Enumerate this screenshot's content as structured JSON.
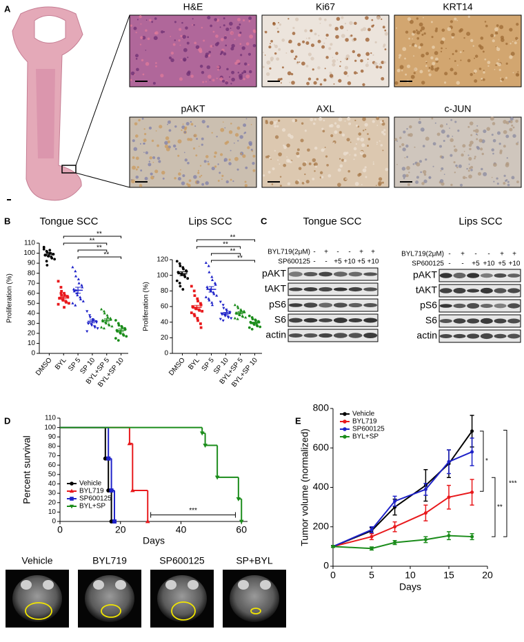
{
  "panel_labels": [
    "A",
    "B",
    "C",
    "D",
    "E"
  ],
  "histology": {
    "stains": [
      "H&E",
      "Ki67",
      "KRT14",
      "pAKT",
      "AXL",
      "c-JUN"
    ]
  },
  "blots": [
    {
      "title": "Tongue SCC",
      "treatments": [
        {
          "name": "BYL719(2μM)",
          "doses": [
            "-",
            "+",
            "-",
            "-",
            "+",
            "+"
          ]
        },
        {
          "name": "SP600125",
          "doses": [
            "-",
            "-",
            "+5",
            "+10",
            "+5",
            "+10"
          ]
        }
      ],
      "proteins": [
        "pAKT",
        "tAKT",
        "pS6",
        "S6",
        "actin"
      ]
    },
    {
      "title": "Lips SCC",
      "treatments": [
        {
          "name": "BYL719(2μM)",
          "doses": [
            "-",
            "+",
            "-",
            "-",
            "+",
            "+"
          ]
        },
        {
          "name": "SP600125",
          "doses": [
            "-",
            "-",
            "+5",
            "+10",
            "+5",
            "+10"
          ]
        }
      ],
      "proteins": [
        "pAKT",
        "tAKT",
        "pS6",
        "S6",
        "actin"
      ]
    }
  ],
  "mri": {
    "labels": [
      {
        "text": "Vehicle",
        "color": "#000000"
      },
      {
        "text": "BYL719",
        "color": "#e8191c"
      },
      {
        "text": "SP600125",
        "color": "#1e22c8"
      },
      {
        "text": "SP+BYL",
        "color": "#1a8c1a"
      }
    ]
  },
  "chart_data": [
    {
      "type": "strip",
      "title": "Tongue SCC",
      "y_label": "Proliferation (%)",
      "categories": [
        "DMSO",
        "BYL",
        "SP 5",
        "SP 10",
        "BYL+SP 5",
        "BYL+SP 10"
      ],
      "groups": [
        {
          "color": "#000000",
          "marker": "circle",
          "mean": 99,
          "sem": 1.5,
          "points": [
            104,
            102,
            101,
            100,
            100,
            99,
            99,
            98,
            98,
            97,
            97,
            96,
            95,
            94,
            106,
            92,
            88,
            103
          ]
        },
        {
          "color": "#e8191c",
          "marker": "square",
          "mean": 56,
          "sem": 1.5,
          "points": [
            72,
            66,
            62,
            60,
            58,
            57,
            56,
            55,
            55,
            54,
            53,
            52,
            51,
            50,
            49,
            60,
            58,
            46
          ]
        },
        {
          "color": "#1e22c8",
          "marker": "triangle-up",
          "mean": 63,
          "sem": 3,
          "points": [
            86,
            82,
            77,
            74,
            70,
            68,
            66,
            64,
            62,
            60,
            58,
            56,
            54,
            52,
            50,
            48,
            63
          ]
        },
        {
          "color": "#1e22c8",
          "marker": "triangle-down",
          "mean": 32,
          "sem": 1.5,
          "points": [
            42,
            38,
            36,
            34,
            33,
            32,
            31,
            30,
            30,
            29,
            28,
            27,
            26,
            25,
            22
          ]
        },
        {
          "color": "#1a8c1a",
          "marker": "triangle-up",
          "mean": 33,
          "sem": 1.5,
          "points": [
            44,
            42,
            40,
            38,
            36,
            35,
            34,
            33,
            32,
            31,
            30,
            29,
            28,
            27,
            26,
            25
          ]
        },
        {
          "color": "#1a8c1a",
          "marker": "circle",
          "mean": 23,
          "sem": 1.5,
          "points": [
            33,
            30,
            28,
            27,
            26,
            25,
            24,
            23,
            22,
            21,
            20,
            19,
            18,
            17,
            15,
            13
          ]
        }
      ],
      "ylim": [
        0,
        110
      ],
      "yticks": [
        0,
        10,
        20,
        30,
        40,
        50,
        60,
        70,
        80,
        90,
        100,
        110
      ],
      "brackets": [
        {
          "from": 1,
          "to": 5,
          "label": "**"
        },
        {
          "from": 1,
          "to": 4,
          "label": "**"
        },
        {
          "from": 2,
          "to": 4,
          "label": "**"
        },
        {
          "from": 2,
          "to": 5,
          "label": "**"
        }
      ]
    },
    {
      "type": "strip",
      "title": "Lips SCC",
      "y_label": "Proliferation (%)",
      "categories": [
        "DMSO",
        "BYL",
        "SP 5",
        "SP 10",
        "BYL+SP 5",
        "BYL+SP 10"
      ],
      "groups": [
        {
          "color": "#000000",
          "marker": "circle",
          "mean": 102,
          "sem": 2.5,
          "points": [
            118,
            115,
            112,
            110,
            108,
            106,
            105,
            104,
            103,
            102,
            101,
            100,
            98,
            96,
            93,
            90,
            86,
            82
          ]
        },
        {
          "color": "#e8191c",
          "marker": "square",
          "mean": 59,
          "sem": 2.5,
          "points": [
            86,
            80,
            74,
            70,
            67,
            64,
            62,
            60,
            59,
            58,
            57,
            56,
            55,
            54,
            52,
            50,
            48,
            45,
            42,
            38,
            33
          ]
        },
        {
          "color": "#1e22c8",
          "marker": "triangle-up",
          "mean": 82,
          "sem": 3.5,
          "points": [
            116,
            112,
            104,
            98,
            94,
            90,
            88,
            85,
            83,
            82,
            80,
            78,
            76,
            74,
            72,
            70,
            68,
            65,
            62
          ]
        },
        {
          "color": "#1e22c8",
          "marker": "triangle-down",
          "mean": 51,
          "sem": 1.5,
          "points": [
            66,
            62,
            58,
            56,
            54,
            53,
            52,
            51,
            50,
            49,
            48,
            47,
            46,
            45,
            44,
            42
          ]
        },
        {
          "color": "#1a8c1a",
          "marker": "triangle-up",
          "mean": 52,
          "sem": 1.5,
          "points": [
            62,
            60,
            58,
            56,
            55,
            54,
            53,
            52,
            51,
            50,
            49,
            48,
            47,
            46,
            45,
            44
          ]
        },
        {
          "color": "#1a8c1a",
          "marker": "circle",
          "mean": 39,
          "sem": 1,
          "points": [
            48,
            46,
            44,
            43,
            42,
            41,
            40,
            40,
            39,
            38,
            37,
            36,
            35,
            34,
            33,
            31
          ]
        }
      ],
      "ylim": [
        0,
        120
      ],
      "yticks": [
        0,
        20,
        40,
        60,
        80,
        100,
        120
      ],
      "brackets": [
        {
          "from": 1,
          "to": 5,
          "label": "**"
        },
        {
          "from": 1,
          "to": 4,
          "label": "**"
        },
        {
          "from": 2,
          "to": 4,
          "label": "**"
        },
        {
          "from": 2,
          "to": 5,
          "label": "**"
        }
      ]
    },
    {
      "type": "survival",
      "x_label": "Days",
      "y_label": "Percent survival",
      "xlim": [
        0,
        62
      ],
      "xticks": [
        0,
        20,
        40,
        60
      ],
      "ylim": [
        0,
        110
      ],
      "yticks": [
        0,
        10,
        20,
        30,
        40,
        50,
        60,
        70,
        80,
        90,
        100,
        110
      ],
      "legend": "lower left",
      "series": [
        {
          "name": "Vehicle",
          "color": "#000000",
          "marker": "circle",
          "x": [
            0,
            15,
            16,
            17
          ],
          "values": [
            100,
            67,
            33,
            0
          ]
        },
        {
          "name": "BYL719",
          "color": "#e8191c",
          "marker": "triangle-up",
          "x": [
            0,
            23,
            24,
            29
          ],
          "values": [
            100,
            83,
            33,
            0
          ]
        },
        {
          "name": "SP600125",
          "color": "#1e22c8",
          "marker": "square",
          "x": [
            0,
            16,
            17,
            18
          ],
          "values": [
            100,
            67,
            33,
            0
          ]
        },
        {
          "name": "BYL+SP",
          "color": "#1a8c1a",
          "marker": "triangle-down",
          "x": [
            0,
            47,
            48,
            52,
            59,
            60
          ],
          "values": [
            100,
            94,
            81,
            47,
            24,
            0
          ]
        }
      ],
      "annotations": [
        {
          "label": "***",
          "x": [
            30,
            58
          ],
          "y": 7
        }
      ]
    },
    {
      "type": "line",
      "x_label": "Days",
      "y_label": "Tumor volume (normalized)",
      "x": [
        0,
        5,
        8,
        12,
        15,
        18
      ],
      "xlim": [
        0,
        20
      ],
      "xticks": [
        0,
        5,
        10,
        15,
        20
      ],
      "ylim": [
        0,
        800
      ],
      "yticks": [
        0,
        200,
        400,
        600,
        800
      ],
      "legend": "upper left",
      "series": [
        {
          "name": "Vehicle",
          "color": "#000000",
          "values": [
            100,
            180,
            300,
            410,
            520,
            685
          ],
          "errors": [
            5,
            15,
            40,
            80,
            70,
            80
          ]
        },
        {
          "name": "BYL719",
          "color": "#e8191c",
          "values": [
            100,
            150,
            200,
            270,
            350,
            375
          ],
          "errors": [
            5,
            15,
            25,
            40,
            60,
            65
          ]
        },
        {
          "name": "SP600125",
          "color": "#1e22c8",
          "values": [
            100,
            185,
            330,
            390,
            530,
            580
          ],
          "errors": [
            5,
            15,
            25,
            30,
            60,
            70
          ]
        },
        {
          "name": "BYL+SP",
          "color": "#1a8c1a",
          "values": [
            100,
            90,
            120,
            135,
            155,
            150
          ],
          "errors": [
            5,
            8,
            10,
            15,
            20,
            15
          ]
        }
      ],
      "brackets": [
        {
          "label": "*",
          "y": [
            685,
            380
          ]
        },
        {
          "label": "**",
          "y": [
            450,
            150
          ]
        },
        {
          "label": "***",
          "y": [
            690,
            150
          ]
        }
      ]
    }
  ]
}
